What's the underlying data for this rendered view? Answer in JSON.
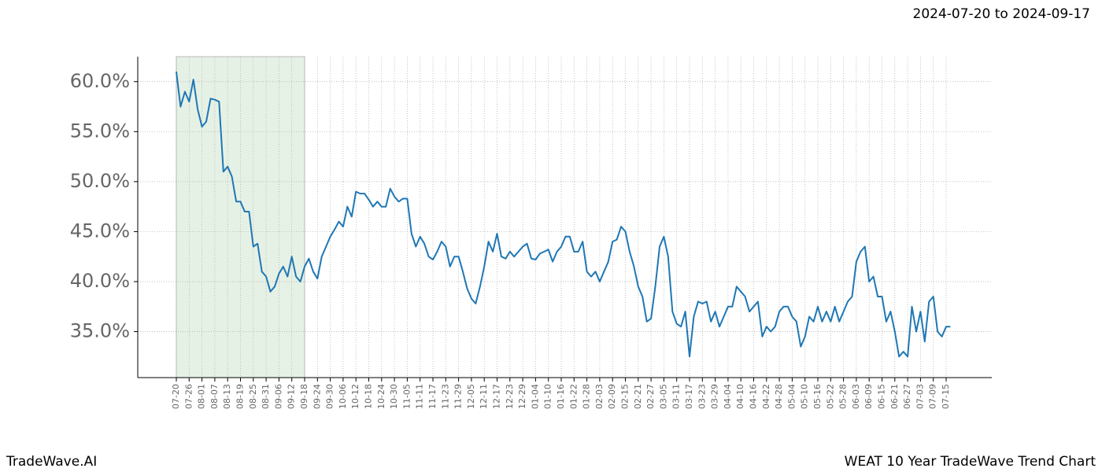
{
  "chart_data": {
    "type": "line",
    "header": "2024-07-20 to 2024-09-17",
    "footer_left": "TradeWave.AI",
    "footer_right": "WEAT 10 Year TradeWave Trend Chart",
    "categories": [
      "07-20",
      null,
      null,
      "07-26",
      null,
      null,
      "08-01",
      null,
      null,
      "08-07",
      null,
      null,
      "08-13",
      null,
      null,
      "08-19",
      null,
      null,
      "08-25",
      null,
      null,
      "08-31",
      null,
      null,
      "09-06",
      null,
      null,
      "09-12",
      null,
      null,
      "09-18",
      null,
      null,
      "09-24",
      null,
      null,
      "09-30",
      null,
      null,
      "10-06",
      null,
      null,
      "10-12",
      null,
      null,
      "10-18",
      null,
      null,
      "10-24",
      null,
      null,
      "10-30",
      null,
      null,
      "11-05",
      null,
      null,
      "11-11",
      null,
      null,
      "11-17",
      null,
      null,
      "11-23",
      null,
      null,
      "11-29",
      null,
      null,
      "12-05",
      null,
      null,
      "12-11",
      null,
      null,
      "12-17",
      null,
      null,
      "12-23",
      null,
      null,
      "12-29",
      null,
      null,
      "01-04",
      null,
      null,
      "01-10",
      null,
      null,
      "01-16",
      null,
      null,
      "01-22",
      null,
      null,
      "01-28",
      null,
      null,
      "02-03",
      null,
      null,
      "02-09",
      null,
      null,
      "02-15",
      null,
      null,
      "02-21",
      null,
      null,
      "02-27",
      null,
      null,
      "03-05",
      null,
      null,
      "03-11",
      null,
      null,
      "03-17",
      null,
      null,
      "03-23",
      null,
      null,
      "03-29",
      null,
      null,
      "04-04",
      null,
      null,
      "04-10",
      null,
      null,
      "04-16",
      null,
      null,
      "04-22",
      null,
      null,
      "04-28",
      null,
      null,
      "05-04",
      null,
      null,
      "05-10",
      null,
      null,
      "05-16",
      null,
      null,
      "05-22",
      null,
      null,
      "05-28",
      null,
      null,
      "06-03",
      null,
      null,
      "06-09",
      null,
      null,
      "06-15",
      null,
      null,
      "06-21",
      null,
      null,
      "06-27",
      null,
      null,
      "07-03",
      null,
      null,
      "07-09",
      null,
      null,
      "07-15",
      null
    ],
    "series": [
      {
        "color": "#1f77b4",
        "values": [
          61.0,
          57.5,
          59.0,
          58.0,
          60.2,
          57.2,
          55.5,
          56.0,
          58.3,
          58.2,
          58.0,
          51.0,
          51.5,
          50.5,
          48.0,
          48.0,
          47.0,
          47.0,
          43.5,
          43.8,
          41.0,
          40.5,
          39.0,
          39.5,
          40.8,
          41.5,
          40.5,
          42.5,
          40.5,
          40.0,
          41.5,
          42.3,
          41.0,
          40.3,
          42.5,
          43.5,
          44.5,
          45.2,
          46.0,
          45.5,
          47.5,
          46.5,
          49.0,
          48.8,
          48.8,
          48.2,
          47.5,
          48.0,
          47.5,
          47.5,
          49.3,
          48.5,
          48.0,
          48.3,
          48.3,
          44.8,
          43.5,
          44.5,
          43.8,
          42.5,
          42.2,
          43.0,
          44.0,
          43.5,
          41.5,
          42.5,
          42.5,
          41.0,
          39.3,
          38.3,
          37.8,
          39.5,
          41.5,
          44.0,
          43.0,
          44.8,
          42.5,
          42.3,
          43.0,
          42.5,
          43.0,
          43.5,
          43.8,
          42.3,
          42.2,
          42.8,
          43.0,
          43.2,
          42.0,
          43.0,
          43.5,
          44.5,
          44.5,
          43.0,
          43.0,
          44.0,
          41.0,
          40.5,
          41.0,
          40.0,
          41.0,
          42.0,
          44.0,
          44.2,
          45.5,
          45.0,
          43.0,
          41.5,
          39.5,
          38.5,
          36.0,
          36.3,
          39.5,
          43.5,
          44.5,
          42.5,
          37.0,
          35.8,
          35.5,
          37.0,
          32.5,
          36.5,
          38.0,
          37.8,
          38.0,
          36.0,
          37.0,
          35.5,
          36.5,
          37.5,
          37.5,
          39.5,
          39.0,
          38.5,
          37.0,
          37.5,
          38.0,
          34.5,
          35.5,
          35.0,
          35.5,
          37.0,
          37.5,
          37.5,
          36.5,
          36.0,
          33.5,
          34.5,
          36.5,
          36.0,
          37.5,
          36.0,
          37.0,
          36.0,
          37.5,
          36.0,
          37.0,
          38.0,
          38.5,
          42.0,
          43.0,
          43.5,
          40.0,
          40.5,
          38.5,
          38.5,
          36.0,
          37.0,
          35.0,
          32.5,
          33.0,
          32.5,
          37.5,
          35.0,
          37.0,
          34.0,
          38.0,
          38.5,
          35.0,
          34.5,
          35.5,
          35.5
        ]
      }
    ],
    "ylim": [
      30.4,
      62.5
    ],
    "yticks": [
      {
        "value": 35,
        "label": "35.0%"
      },
      {
        "value": 40,
        "label": "40.0%"
      },
      {
        "value": 45,
        "label": "45.0%"
      },
      {
        "value": 50,
        "label": "50.0%"
      },
      {
        "value": 55,
        "label": "55.0%"
      },
      {
        "value": 60,
        "label": "60.0%"
      }
    ],
    "grid": true,
    "shade": [
      "07-20",
      "09-18"
    ],
    "shade_color": "#2e8b2e"
  }
}
